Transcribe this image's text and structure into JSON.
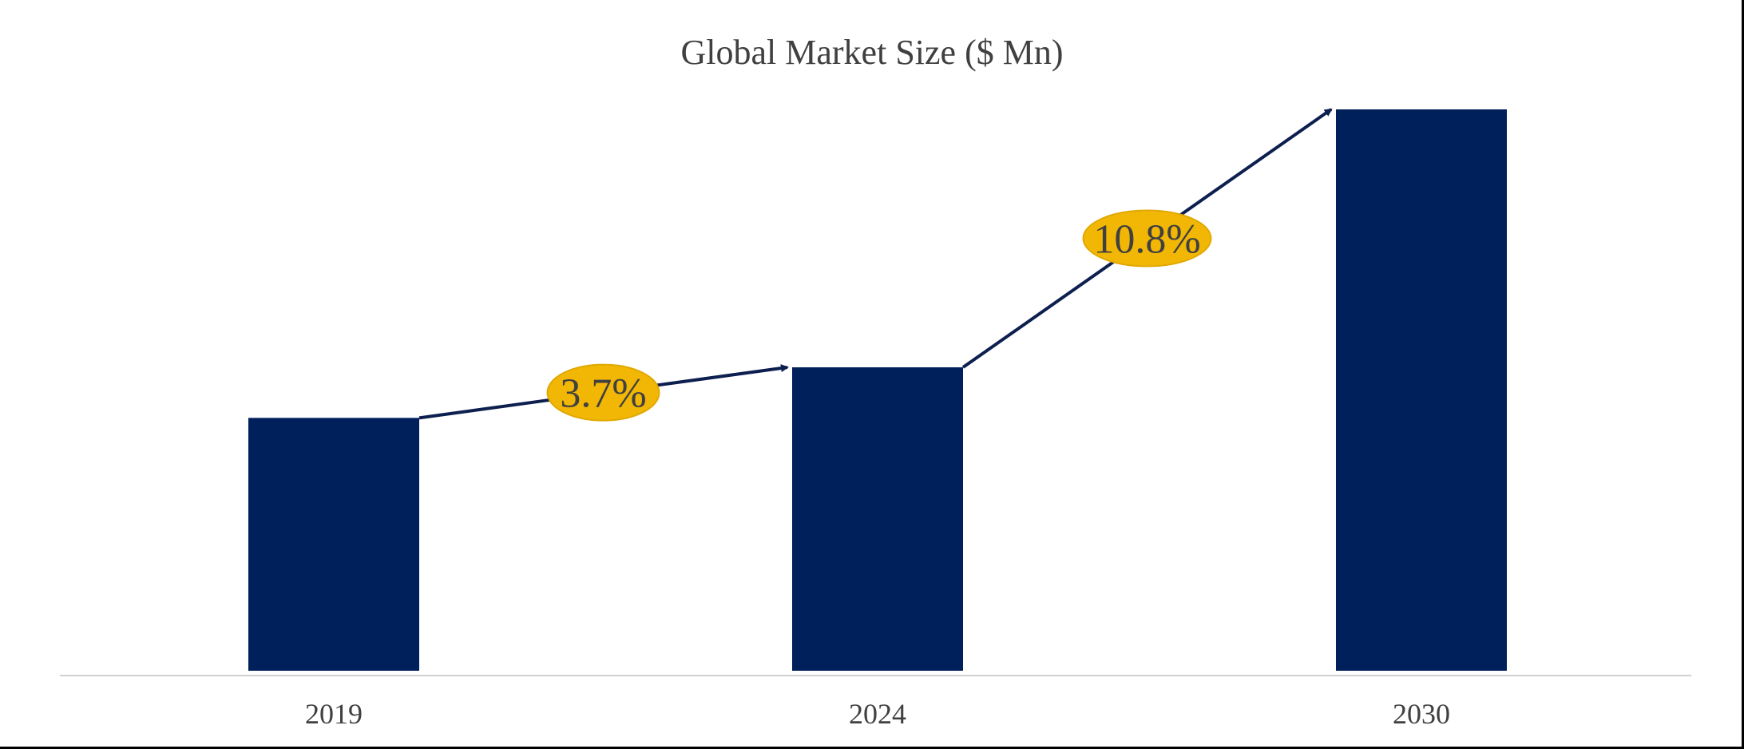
{
  "chart_data": {
    "type": "bar",
    "title": "Global Market Size ($ Mn)",
    "xlabel": "",
    "ylabel": "",
    "categories": [
      "2019",
      "2024",
      "2030"
    ],
    "values": [
      100,
      120,
      222
    ],
    "ylim": [
      0,
      240
    ],
    "grid": false,
    "legend": "none",
    "annotations": [
      {
        "label": "3.7%",
        "from": "2019",
        "to": "2024"
      },
      {
        "label": "10.8%",
        "from": "2024",
        "to": "2030"
      }
    ],
    "colors": {
      "bar": "#00205B",
      "arrow": "#0D1F4F",
      "badge_fill": "#F2B705",
      "badge_stroke": "#E0A800",
      "text": "#404040",
      "axis": "#D0D0D0"
    }
  }
}
